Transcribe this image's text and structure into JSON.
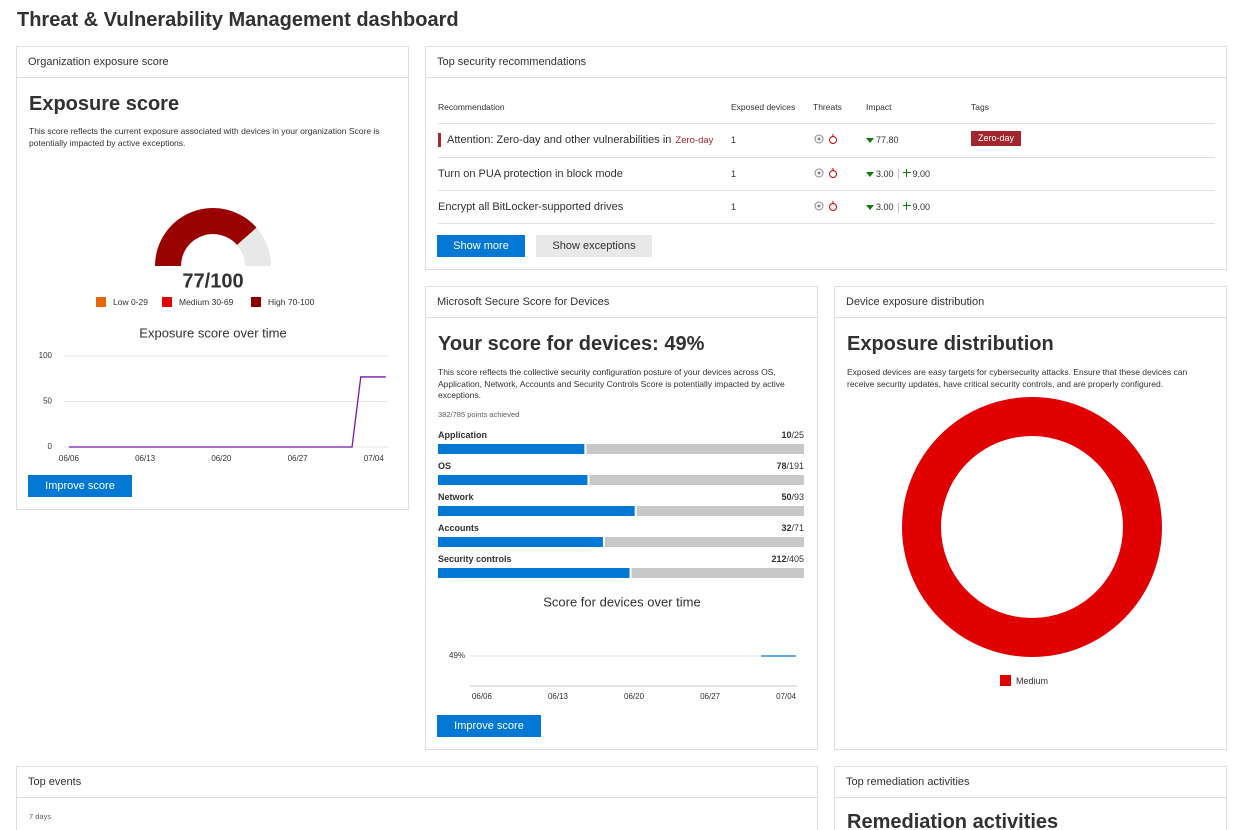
{
  "page_title": "Threat & Vulnerability Management dashboard",
  "exposure": {
    "header": "Organization exposure score",
    "heading": "Exposure score",
    "description": "This score reflects the current exposure associated with devices in your organization Score is potentially impacted by active exceptions.",
    "gauge": {
      "value": 77,
      "max": 100,
      "value_label": "77/100",
      "color": "#990000"
    },
    "legend": [
      {
        "label": "Low 0-29",
        "color": "#e8650a"
      },
      {
        "label": "Medium 30-69",
        "color": "#e00000"
      },
      {
        "label": "High 70-100",
        "color": "#8b0000"
      }
    ],
    "chart": {
      "type": "line",
      "title": "Exposure score over time",
      "color": "#7719aa",
      "xlim": [
        -0.45,
        29.3
      ],
      "xticks": [
        {
          "value": 0,
          "label": "06/06"
        },
        {
          "value": 7,
          "label": "06/13"
        },
        {
          "value": 14,
          "label": "06/20"
        },
        {
          "value": 21,
          "label": "06/27"
        },
        {
          "value": 28,
          "label": "07/04"
        }
      ],
      "ylim": [
        0,
        100
      ],
      "yticks": [
        0,
        50,
        100
      ],
      "x": [
        0,
        26,
        26.8,
        29.1
      ],
      "values": [
        0,
        0,
        77,
        77
      ]
    },
    "button": "Improve score"
  },
  "recommendations": {
    "header": "Top security recommendations",
    "columns": [
      "Recommendation",
      "Exposed devices",
      "Threats",
      "Impact",
      "Tags"
    ],
    "rows": [
      {
        "recommendation": "Attention: Zero-day and other vulnerabilities in",
        "inline_tag": "Zero-day",
        "exposed_devices": "1",
        "impact": "77.80",
        "tag": "Zero-day"
      },
      {
        "recommendation": "Turn on PUA protection in block mode",
        "exposed_devices": "1",
        "impact": "3.00",
        "score_impact": "9.00"
      },
      {
        "recommendation": "Encrypt all BitLocker-supported drives",
        "exposed_devices": "1",
        "impact": "3.00",
        "score_impact": "9.00"
      }
    ],
    "buttons": [
      "Show more",
      "Show exceptions"
    ]
  },
  "secure_score": {
    "header": "Microsoft Secure Score for Devices",
    "heading": "Your score for devices: 49%",
    "description": "This score reflects the collective security configuration posture of your devices across OS, Application, Network, Accounts and Security Controls Score is potentially impacted by active exceptions.",
    "points": "382/785 points achieved",
    "categories": [
      {
        "name": "Application",
        "score": 10,
        "max": 25,
        "max_label": "/25"
      },
      {
        "name": "OS",
        "score": 78,
        "max": 191,
        "max_label": "/191"
      },
      {
        "name": "Network",
        "score": 50,
        "max": 93,
        "max_label": "/93"
      },
      {
        "name": "Accounts",
        "score": 32,
        "max": 71,
        "max_label": "/71"
      },
      {
        "name": "Security controls",
        "score": 212,
        "max": 405,
        "max_label": "/405"
      }
    ],
    "bar_color": "#0078d4",
    "chart": {
      "type": "line",
      "title": "Score for devices over time",
      "color": "#0078d4",
      "xlim": [
        -1.1,
        29
      ],
      "xticks": [
        {
          "value": 0,
          "label": "06/06"
        },
        {
          "value": 7,
          "label": "06/13"
        },
        {
          "value": 14,
          "label": "06/20"
        },
        {
          "value": 21,
          "label": "06/27"
        },
        {
          "value": 28,
          "label": "07/04"
        }
      ],
      "ylim": [
        39,
        59
      ],
      "yticks": [
        {
          "value": 49,
          "label": "49%"
        }
      ],
      "x": [
        25.7,
        28.9
      ],
      "values": [
        49,
        49
      ]
    },
    "button": "Improve score"
  },
  "distribution": {
    "type": "donut",
    "header": "Device exposure distribution",
    "heading": "Exposure distribution",
    "description": "Exposed devices are easy targets for cybersecurity attacks. Ensure that these devices can receive security updates, have critical security controls, and are properly configured.",
    "series": [
      {
        "name": "Medium",
        "value": 1,
        "color": "#e00000"
      }
    ]
  },
  "top_events": {
    "header": "Top events",
    "period": "7 days"
  },
  "remediation": {
    "header": "Top remediation activities",
    "heading": "Remediation activities"
  }
}
